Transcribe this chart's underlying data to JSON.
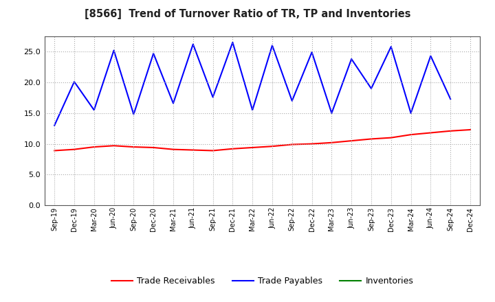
{
  "title": "[8566]  Trend of Turnover Ratio of TR, TP and Inventories",
  "x_labels": [
    "Sep-19",
    "Dec-19",
    "Mar-20",
    "Jun-20",
    "Sep-20",
    "Dec-20",
    "Mar-21",
    "Jun-21",
    "Sep-21",
    "Dec-21",
    "Mar-22",
    "Jun-22",
    "Sep-22",
    "Dec-22",
    "Mar-23",
    "Jun-23",
    "Sep-23",
    "Dec-23",
    "Mar-24",
    "Jun-24",
    "Sep-24",
    "Dec-24"
  ],
  "trade_receivables": [
    8.9,
    9.1,
    9.5,
    9.7,
    9.5,
    9.4,
    9.1,
    9.0,
    8.9,
    9.2,
    9.4,
    9.6,
    9.9,
    10.0,
    10.2,
    10.5,
    10.8,
    11.0,
    11.5,
    11.8,
    12.1,
    12.3
  ],
  "trade_payables": [
    13.0,
    20.1,
    15.5,
    25.2,
    14.8,
    24.7,
    16.6,
    26.2,
    17.6,
    26.5,
    15.5,
    26.0,
    17.0,
    24.9,
    15.0,
    23.8,
    19.0,
    25.8,
    15.0,
    24.3,
    17.3,
    null
  ],
  "inventories": [
    null,
    null,
    null,
    null,
    null,
    null,
    null,
    null,
    null,
    null,
    null,
    null,
    null,
    null,
    null,
    null,
    null,
    null,
    null,
    null,
    null,
    null
  ],
  "ylim": [
    0,
    27.5
  ],
  "yticks": [
    0.0,
    5.0,
    10.0,
    15.0,
    20.0,
    25.0
  ],
  "line_color_tr": "#FF0000",
  "line_color_tp": "#0000FF",
  "line_color_inv": "#008000",
  "background_color": "#FFFFFF",
  "grid_color": "#AAAAAA",
  "legend_labels": [
    "Trade Receivables",
    "Trade Payables",
    "Inventories"
  ]
}
